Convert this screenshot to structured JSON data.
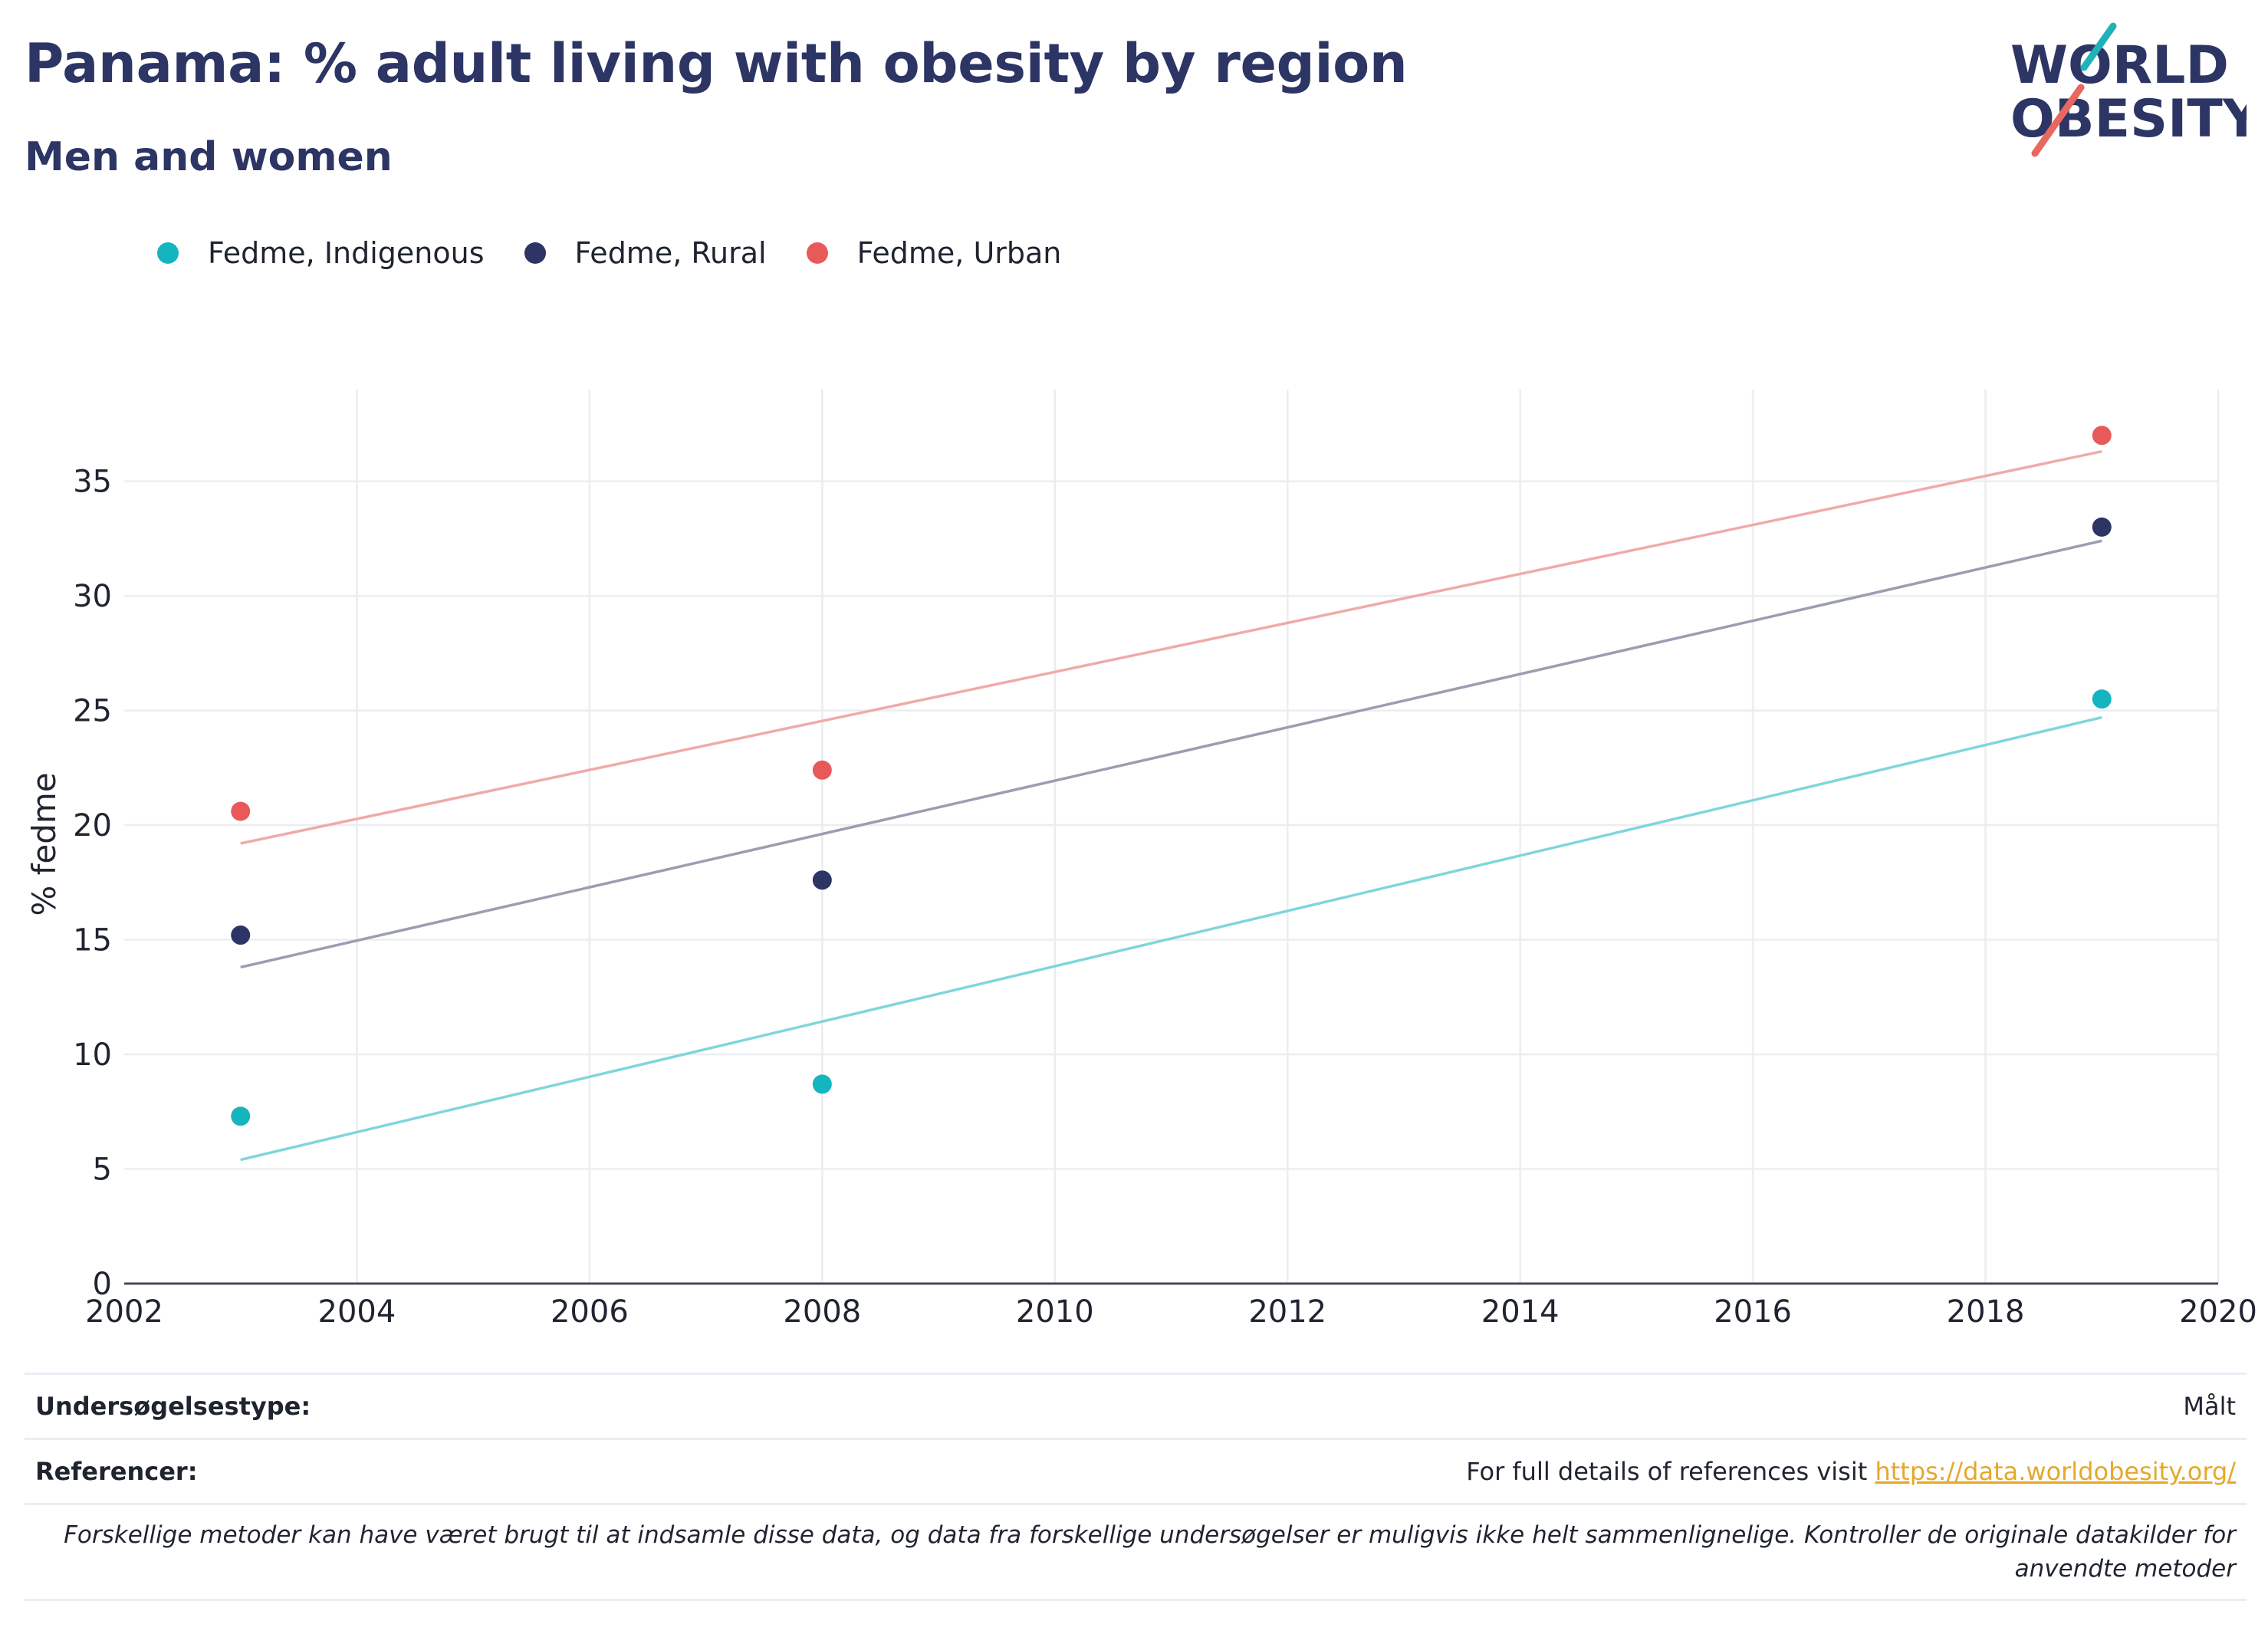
{
  "header": {
    "title": "Panama: % adult living with obesity by region",
    "subtitle": "Men and women"
  },
  "logo": {
    "line1": "WORLD",
    "line2": "OBESITY"
  },
  "legend": [
    {
      "label": "Fedme, Indigenous",
      "color": "#15b5bf"
    },
    {
      "label": "Fedme, Rural",
      "color": "#2c3564"
    },
    {
      "label": "Fedme, Urban",
      "color": "#e85a5a"
    }
  ],
  "chart_data": {
    "type": "scatter",
    "title": "Panama: % adult living with obesity by region",
    "subtitle": "Men and women",
    "ylabel": "% fedme",
    "xlabel": "",
    "xlim": [
      2002,
      2020
    ],
    "ylim": [
      0,
      39
    ],
    "x_ticks": [
      "2002",
      "2004",
      "2006",
      "2008",
      "2010",
      "2012",
      "2014",
      "2016",
      "2018",
      "2020"
    ],
    "y_ticks": [
      "0",
      "5",
      "10",
      "15",
      "20",
      "25",
      "30",
      "35"
    ],
    "grid": true,
    "legend_position": "top-left",
    "trendlines": true,
    "series": [
      {
        "name": "Fedme, Indigenous",
        "color": "#15b5bf",
        "line_color": "#7fd6da",
        "points": [
          {
            "x": 2003,
            "y": 7.3
          },
          {
            "x": 2008,
            "y": 8.7
          },
          {
            "x": 2019,
            "y": 25.5
          }
        ],
        "trend": [
          {
            "x": 2003,
            "y": 5.4
          },
          {
            "x": 2019,
            "y": 24.7
          }
        ]
      },
      {
        "name": "Fedme, Rural",
        "color": "#2c3564",
        "line_color": "#9b9db2",
        "points": [
          {
            "x": 2003,
            "y": 15.2
          },
          {
            "x": 2008,
            "y": 17.6
          },
          {
            "x": 2019,
            "y": 33.0
          }
        ],
        "trend": [
          {
            "x": 2003,
            "y": 13.8
          },
          {
            "x": 2019,
            "y": 32.4
          }
        ]
      },
      {
        "name": "Fedme, Urban",
        "color": "#e85a5a",
        "line_color": "#f0aaa8",
        "points": [
          {
            "x": 2003,
            "y": 20.6
          },
          {
            "x": 2008,
            "y": 22.4
          },
          {
            "x": 2019,
            "y": 37.0
          }
        ],
        "trend": [
          {
            "x": 2003,
            "y": 19.2
          },
          {
            "x": 2019,
            "y": 36.3
          }
        ]
      }
    ]
  },
  "footer": {
    "survey_label": "Undersøgelsestype:",
    "survey_value": "Målt",
    "ref_label": "Referencer:",
    "ref_text": "For full details of references visit ",
    "ref_link": "https://data.worldobesity.org/",
    "note": "Forskellige metoder kan have været brugt til at indsamle disse data, og data fra forskellige undersøgelser er muligvis ikke helt sammenlignelige. Kontroller de originale datakilder for anvendte metoder"
  }
}
